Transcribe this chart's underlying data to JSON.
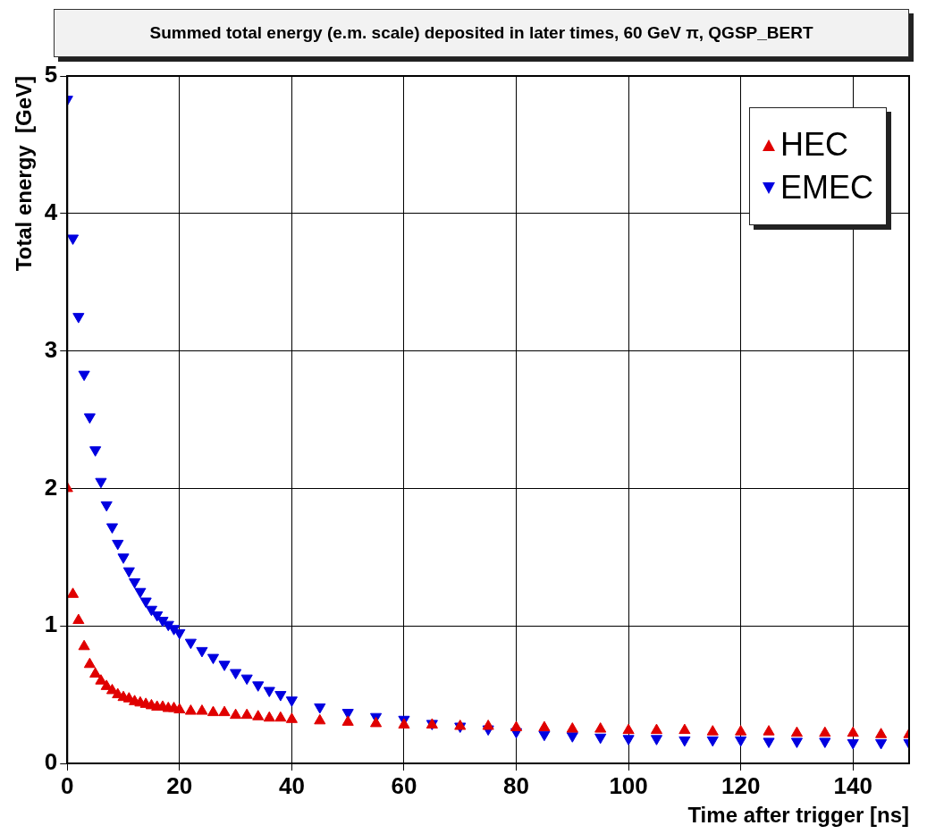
{
  "chart_data": {
    "type": "scatter",
    "title": "Summed total energy (e.m. scale) deposited in later times, 60 GeV π, QGSP_BERT",
    "xlabel": "Time after trigger [ns]",
    "ylabel": "Total energy  [GeV]",
    "x": [
      0,
      1,
      2,
      3,
      4,
      5,
      6,
      7,
      8,
      9,
      10,
      11,
      12,
      13,
      14,
      15,
      16,
      17,
      18,
      19,
      20,
      22,
      24,
      26,
      28,
      30,
      32,
      34,
      36,
      38,
      40,
      45,
      50,
      55,
      60,
      65,
      70,
      75,
      80,
      85,
      90,
      95,
      100,
      105,
      110,
      115,
      120,
      125,
      130,
      135,
      140,
      145,
      150
    ],
    "series": [
      {
        "name": "HEC",
        "color": "#e00000",
        "marker": "triangle",
        "values": [
          2.0,
          1.23,
          1.04,
          0.85,
          0.72,
          0.65,
          0.6,
          0.56,
          0.53,
          0.5,
          0.48,
          0.47,
          0.45,
          0.44,
          0.43,
          0.42,
          0.41,
          0.41,
          0.4,
          0.4,
          0.39,
          0.38,
          0.38,
          0.37,
          0.37,
          0.35,
          0.35,
          0.34,
          0.33,
          0.33,
          0.32,
          0.31,
          0.3,
          0.29,
          0.28,
          0.28,
          0.27,
          0.27,
          0.26,
          0.26,
          0.25,
          0.25,
          0.24,
          0.24,
          0.24,
          0.23,
          0.23,
          0.23,
          0.22,
          0.22,
          0.22,
          0.21,
          0.21
        ]
      },
      {
        "name": "EMEC",
        "color": "#0000e0",
        "marker": "triangle-down",
        "values": [
          4.83,
          3.82,
          3.25,
          2.83,
          2.52,
          2.28,
          2.05,
          1.88,
          1.72,
          1.6,
          1.5,
          1.4,
          1.32,
          1.25,
          1.18,
          1.12,
          1.08,
          1.04,
          1.01,
          0.98,
          0.95,
          0.88,
          0.82,
          0.77,
          0.72,
          0.66,
          0.62,
          0.57,
          0.53,
          0.5,
          0.46,
          0.41,
          0.37,
          0.34,
          0.32,
          0.29,
          0.27,
          0.25,
          0.23,
          0.21,
          0.2,
          0.19,
          0.18,
          0.18,
          0.17,
          0.17,
          0.17,
          0.16,
          0.16,
          0.16,
          0.15,
          0.15,
          0.15
        ]
      }
    ],
    "xlim": [
      0,
      150
    ],
    "xticks": [
      0,
      20,
      40,
      60,
      80,
      100,
      120,
      140
    ],
    "ylim": [
      0,
      5
    ],
    "yticks": [
      0,
      1,
      2,
      3,
      4,
      5
    ],
    "grid": true,
    "legend": "top right"
  }
}
